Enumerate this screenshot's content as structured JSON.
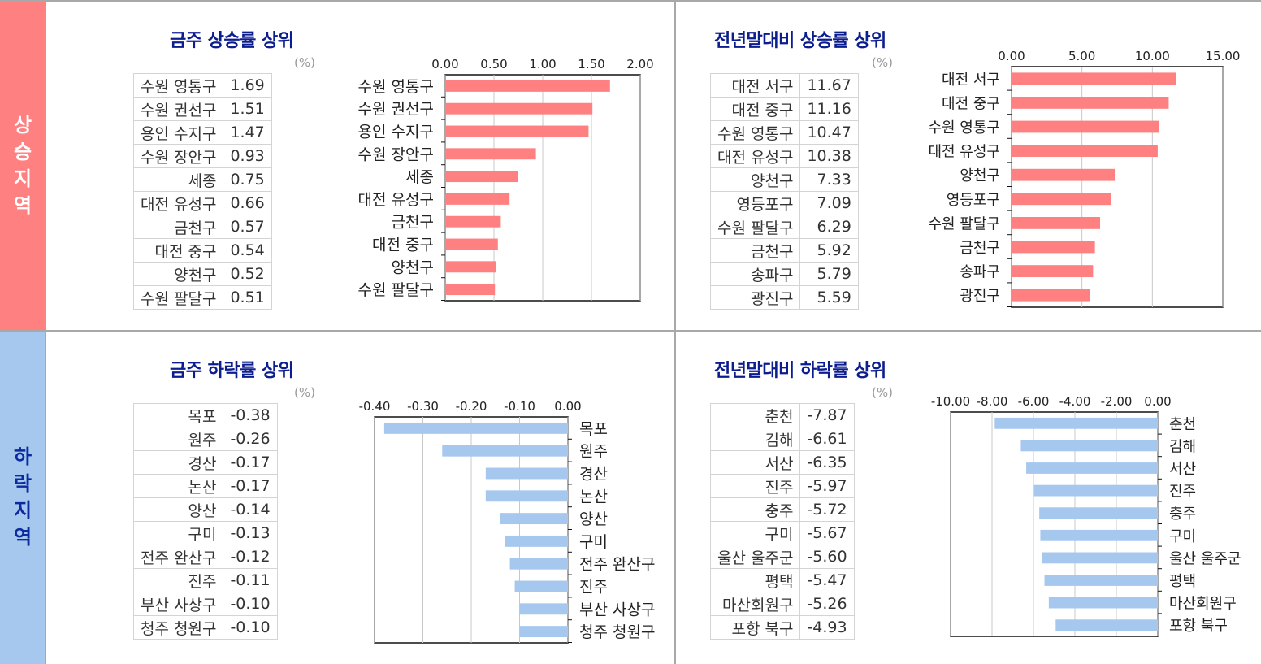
{
  "side_labels": {
    "rise": "상승지역",
    "fall": "하락지역"
  },
  "unit_label": "(%)",
  "panels": {
    "weekly_rise": {
      "title": "금주 상승률 상위",
      "rows": [
        {
          "name": "수원 영통구",
          "value": "1.69"
        },
        {
          "name": "수원 권선구",
          "value": "1.51"
        },
        {
          "name": "용인 수지구",
          "value": "1.47"
        },
        {
          "name": "수원 장안구",
          "value": "0.93"
        },
        {
          "name": "세종",
          "value": "0.75"
        },
        {
          "name": "대전 유성구",
          "value": "0.66"
        },
        {
          "name": "금천구",
          "value": "0.57"
        },
        {
          "name": "대전 중구",
          "value": "0.54"
        },
        {
          "name": "양천구",
          "value": "0.52"
        },
        {
          "name": "수원 팔달구",
          "value": "0.51"
        }
      ]
    },
    "ytd_rise": {
      "title": "전년말대비 상승률 상위",
      "rows": [
        {
          "name": "대전 서구",
          "value": "11.67"
        },
        {
          "name": "대전 중구",
          "value": "11.16"
        },
        {
          "name": "수원 영통구",
          "value": "10.47"
        },
        {
          "name": "대전 유성구",
          "value": "10.38"
        },
        {
          "name": "양천구",
          "value": "7.33"
        },
        {
          "name": "영등포구",
          "value": "7.09"
        },
        {
          "name": "수원 팔달구",
          "value": "6.29"
        },
        {
          "name": "금천구",
          "value": "5.92"
        },
        {
          "name": "송파구",
          "value": "5.79"
        },
        {
          "name": "광진구",
          "value": "5.59"
        }
      ]
    },
    "weekly_fall": {
      "title": "금주 하락률 상위",
      "rows": [
        {
          "name": "목포",
          "value": "-0.38"
        },
        {
          "name": "원주",
          "value": "-0.26"
        },
        {
          "name": "경산",
          "value": "-0.17"
        },
        {
          "name": "논산",
          "value": "-0.17"
        },
        {
          "name": "양산",
          "value": "-0.14"
        },
        {
          "name": "구미",
          "value": "-0.13"
        },
        {
          "name": "전주 완산구",
          "value": "-0.12"
        },
        {
          "name": "진주",
          "value": "-0.11"
        },
        {
          "name": "부산 사상구",
          "value": "-0.10"
        },
        {
          "name": "청주 청원구",
          "value": "-0.10"
        }
      ]
    },
    "ytd_fall": {
      "title": "전년말대비 하락률 상위",
      "rows": [
        {
          "name": "춘천",
          "value": "-7.87"
        },
        {
          "name": "김해",
          "value": "-6.61"
        },
        {
          "name": "서산",
          "value": "-6.35"
        },
        {
          "name": "진주",
          "value": "-5.97"
        },
        {
          "name": "충주",
          "value": "-5.72"
        },
        {
          "name": "구미",
          "value": "-5.67"
        },
        {
          "name": "울산 울주군",
          "value": "-5.60"
        },
        {
          "name": "평택",
          "value": "-5.47"
        },
        {
          "name": "마산회원구",
          "value": "-5.26"
        },
        {
          "name": "포항 북구",
          "value": "-4.93"
        }
      ]
    }
  },
  "chart_data": [
    {
      "id": "weekly_rise",
      "type": "bar",
      "orientation": "horizontal",
      "title": "금주 상승률 상위",
      "categories": [
        "수원 영통구",
        "수원 권선구",
        "용인 수지구",
        "수원 장안구",
        "세종",
        "대전 유성구",
        "금천구",
        "대전 중구",
        "양천구",
        "수원 팔달구"
      ],
      "values": [
        1.69,
        1.51,
        1.47,
        0.93,
        0.75,
        0.66,
        0.57,
        0.54,
        0.52,
        0.51
      ],
      "xlim": [
        0,
        2.0
      ],
      "ticks": [
        "0.00",
        "0.50",
        "1.00",
        "1.50",
        "2.00"
      ],
      "color": "#ff8080",
      "axis_position": "top",
      "label_side": "left"
    },
    {
      "id": "ytd_rise",
      "type": "bar",
      "orientation": "horizontal",
      "title": "전년말대비 상승률 상위",
      "categories": [
        "대전 서구",
        "대전 중구",
        "수원 영통구",
        "대전 유성구",
        "양천구",
        "영등포구",
        "수원 팔달구",
        "금천구",
        "송파구",
        "광진구"
      ],
      "values": [
        11.67,
        11.16,
        10.47,
        10.38,
        7.33,
        7.09,
        6.29,
        5.92,
        5.79,
        5.59
      ],
      "xlim": [
        0,
        15.0
      ],
      "ticks": [
        "0.00",
        "5.00",
        "10.00",
        "15.00"
      ],
      "color": "#ff8080",
      "axis_position": "top",
      "label_side": "left"
    },
    {
      "id": "weekly_fall",
      "type": "bar",
      "orientation": "horizontal",
      "title": "금주 하락률 상위",
      "categories": [
        "목포",
        "원주",
        "경산",
        "논산",
        "양산",
        "구미",
        "전주 완산구",
        "진주",
        "부산 사상구",
        "청주 청원구"
      ],
      "values": [
        -0.38,
        -0.26,
        -0.17,
        -0.17,
        -0.14,
        -0.13,
        -0.12,
        -0.11,
        -0.1,
        -0.1
      ],
      "xlim": [
        -0.4,
        0
      ],
      "ticks": [
        "-0.40",
        "-0.30",
        "-0.20",
        "-0.10",
        "0.00"
      ],
      "color": "#a6c8ee",
      "axis_position": "top",
      "label_side": "right"
    },
    {
      "id": "ytd_fall",
      "type": "bar",
      "orientation": "horizontal",
      "title": "전년말대비 하락률 상위",
      "categories": [
        "춘천",
        "김해",
        "서산",
        "진주",
        "충주",
        "구미",
        "울산 울주군",
        "평택",
        "마산회원구",
        "포항 북구"
      ],
      "values": [
        -7.87,
        -6.61,
        -6.35,
        -5.97,
        -5.72,
        -5.67,
        -5.6,
        -5.47,
        -5.26,
        -4.93
      ],
      "xlim": [
        -10,
        0
      ],
      "ticks": [
        "-10.00",
        "-8.00",
        "-6.00",
        "-4.00",
        "-2.00",
        "0.00"
      ],
      "color": "#a6c8ee",
      "axis_position": "top",
      "label_side": "right"
    }
  ]
}
